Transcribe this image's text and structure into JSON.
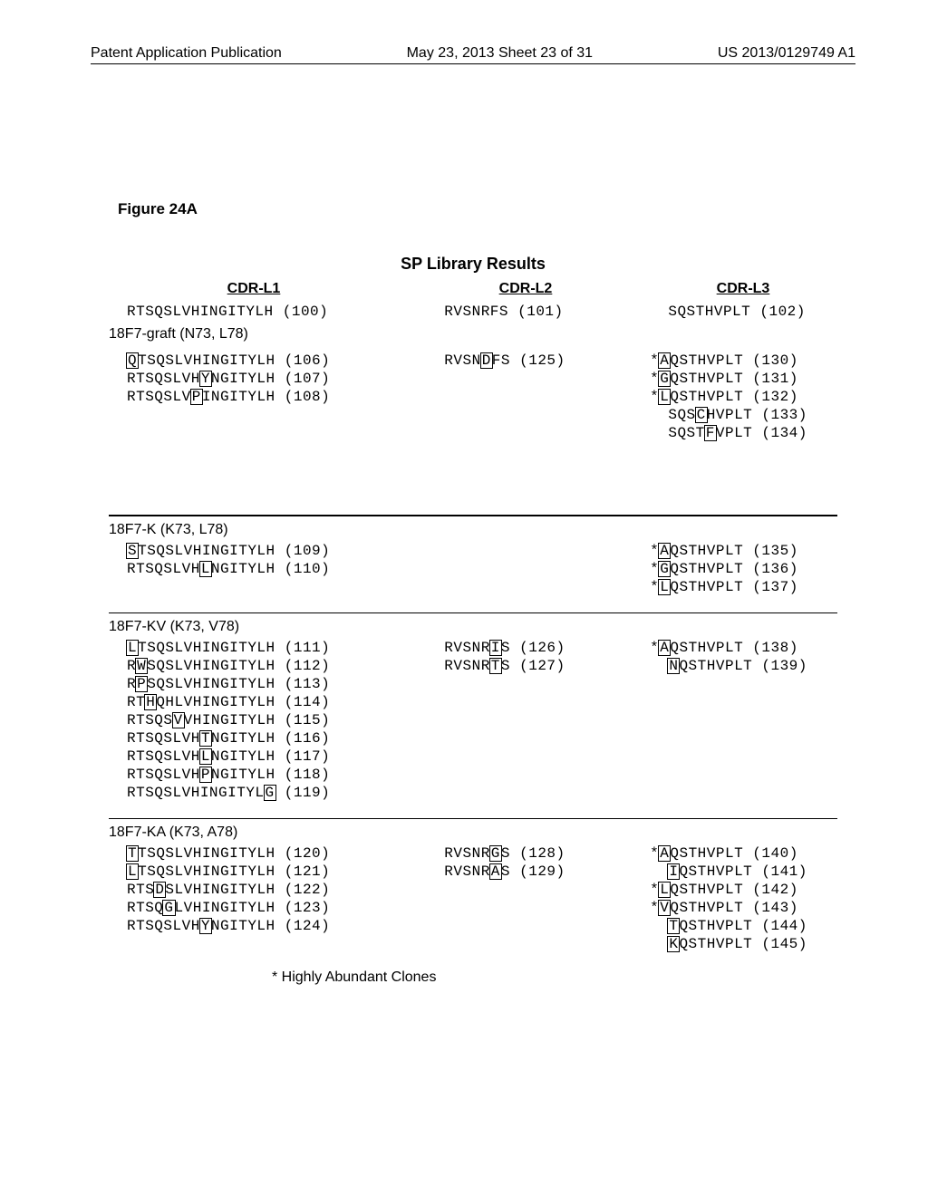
{
  "header": {
    "left": "Patent Application Publication",
    "center": "May 23, 2013  Sheet 23 of 31",
    "right": "US 2013/0129749 A1"
  },
  "figure_label": "Figure 24A",
  "title": "SP Library Results",
  "column_headers": {
    "c1": "CDR-L1",
    "c2": "CDR-L2",
    "c3": "CDR-L3"
  },
  "graft": {
    "label": "18F7-graft (N73, L78)",
    "l1": {
      "seq": "RTSQSLVHINGITYLH",
      "num": "(100)"
    },
    "l2": {
      "seq": "RVSNRFS",
      "num": "(101)"
    },
    "l3": {
      "seq": "SQSTHVPLT",
      "num": "(102)"
    }
  },
  "block1": {
    "l1": [
      {
        "pre": "",
        "box": "Q",
        "post": "TSQSLVHINGITYLH",
        "num": "(106)"
      },
      {
        "pre": "RTSQSLVH",
        "box": "Y",
        "post": "NGITYLH",
        "num": "(107)"
      },
      {
        "pre": "RTSQSLV",
        "box": "P",
        "post": "INGITYLH",
        "num": "(108)"
      }
    ],
    "l2": [
      {
        "pre": "RVSN",
        "box": "D",
        "post": "FS",
        "num": "(125)"
      }
    ],
    "l3": [
      {
        "star": true,
        "pre": "",
        "box": "A",
        "post": "QSTHVPLT",
        "num": "(130)"
      },
      {
        "star": true,
        "pre": "",
        "box": "G",
        "post": "QSTHVPLT",
        "num": "(131)"
      },
      {
        "star": true,
        "pre": "",
        "box": "L",
        "post": "QSTHVPLT",
        "num": "(132)"
      },
      {
        "star": false,
        "pre": " SQS",
        "box": "C",
        "post": "HVPLT",
        "num": "(133)"
      },
      {
        "star": false,
        "pre": " SQST",
        "box": "F",
        "post": "VPLT",
        "num": "(134)"
      }
    ]
  },
  "k": {
    "label": "18F7-K (K73, L78)",
    "l1": [
      {
        "pre": "",
        "box": "S",
        "post": "TSQSLVHINGITYLH",
        "num": "(109)"
      },
      {
        "pre": "RTSQSLVH",
        "box": "L",
        "post": "NGITYLH",
        "num": "(110)"
      }
    ],
    "l3": [
      {
        "star": true,
        "pre": "",
        "box": "A",
        "post": "QSTHVPLT",
        "num": "(135)"
      },
      {
        "star": true,
        "pre": "",
        "box": "G",
        "post": "QSTHVPLT",
        "num": "(136)"
      },
      {
        "star": true,
        "pre": "",
        "box": "L",
        "post": "QSTHVPLT",
        "num": "(137)"
      }
    ]
  },
  "kv": {
    "label": "18F7-KV (K73, V78)",
    "l1": [
      {
        "pre": "",
        "box": "L",
        "post": "TSQSLVHINGITYLH",
        "num": "(111)"
      },
      {
        "pre": "R",
        "box": "W",
        "post": "SQSLVHINGITYLH",
        "num": "(112)"
      },
      {
        "pre": "R",
        "box": "P",
        "post": "SQSLVHINGITYLH",
        "num": "(113)"
      },
      {
        "pre": "RT",
        "box": "H",
        "post": "QHLVHINGITYLH",
        "num": "(114)"
      },
      {
        "pre": "RTSQS",
        "box": "V",
        "post": "VHINGITYLH",
        "num": "(115)"
      },
      {
        "pre": "RTSQSLVH",
        "box": "T",
        "post": "NGITYLH",
        "num": "(116)"
      },
      {
        "pre": "RTSQSLVH",
        "box": "L",
        "post": "NGITYLH",
        "num": "(117)"
      },
      {
        "pre": "RTSQSLVH",
        "box": "P",
        "post": "NGITYLH",
        "num": "(118)"
      },
      {
        "pre": "RTSQSLVHINGITYL",
        "box": "G",
        "post": "",
        "num": "(119)"
      }
    ],
    "l2": [
      {
        "pre": "RVSNR",
        "box": "I",
        "post": "S",
        "num": "(126)"
      },
      {
        "pre": "RVSNR",
        "box": "T",
        "post": "S",
        "num": "(127)"
      }
    ],
    "l3": [
      {
        "star": true,
        "pre": "",
        "box": "A",
        "post": "QSTHVPLT",
        "num": "(138)"
      },
      {
        "star": false,
        "pre": " ",
        "box": "N",
        "post": "QSTHVPLT",
        "num": "(139)"
      }
    ]
  },
  "ka": {
    "label": "18F7-KA (K73, A78)",
    "l1": [
      {
        "pre": "",
        "box": "T",
        "post": "TSQSLVHINGITYLH",
        "num": "(120)"
      },
      {
        "pre": "",
        "box": "L",
        "post": "TSQSLVHINGITYLH",
        "num": "(121)"
      },
      {
        "pre": "RTS",
        "box": "D",
        "post": "SLVHINGITYLH",
        "num": "(122)"
      },
      {
        "pre": "RTSQ",
        "box": "G",
        "post": "LVHINGITYLH",
        "num": "(123)"
      },
      {
        "pre": "RTSQSLVH",
        "box": "Y",
        "post": "NGITYLH",
        "num": "(124)"
      }
    ],
    "l2": [
      {
        "pre": "RVSNR",
        "box": "G",
        "post": "S",
        "num": "(128)"
      },
      {
        "pre": "RVSNR",
        "box": "A",
        "post": "S",
        "num": "(129)"
      }
    ],
    "l3": [
      {
        "star": true,
        "pre": "",
        "box": "A",
        "post": "QSTHVPLT",
        "num": "(140)"
      },
      {
        "star": false,
        "pre": " ",
        "box": "I",
        "post": "QSTHVPLT",
        "num": "(141)"
      },
      {
        "star": true,
        "pre": "",
        "box": "L",
        "post": "QSTHVPLT",
        "num": "(142)"
      },
      {
        "star": true,
        "pre": "",
        "box": "V",
        "post": "QSTHVPLT",
        "num": "(143)"
      },
      {
        "star": false,
        "pre": " ",
        "box": "T",
        "post": "QSTHVPLT",
        "num": "(144)"
      },
      {
        "star": false,
        "pre": " ",
        "box": "K",
        "post": "QSTHVPLT",
        "num": "(145)"
      }
    ]
  },
  "footnote": "* Highly Abundant Clones"
}
